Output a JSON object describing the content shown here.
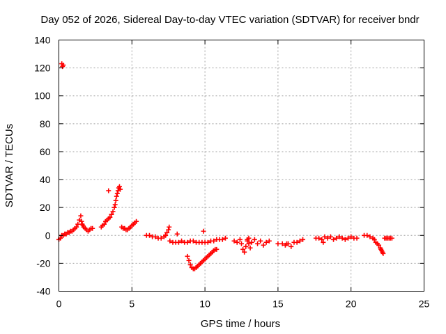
{
  "chart_data": {
    "type": "scatter",
    "title": "Day 052 of 2026, Sidereal Day-to-day VTEC variation (SDTVAR) for receiver bndr",
    "xlabel": "GPS time / hours",
    "ylabel": "SDTVAR / TECUs",
    "xlim": [
      0,
      25
    ],
    "ylim": [
      -40,
      140
    ],
    "xticks": [
      0,
      5,
      10,
      15,
      20,
      25
    ],
    "yticks": [
      -40,
      -20,
      0,
      20,
      40,
      60,
      80,
      100,
      120,
      140
    ],
    "grid": true,
    "marker": "+",
    "color": "#ff0000",
    "series": [
      {
        "x": [
          0.0,
          0.1,
          0.2,
          0.3,
          0.4,
          0.5,
          0.6,
          0.7,
          0.8,
          0.9,
          1.0,
          1.1,
          1.2,
          1.3,
          1.4,
          1.5,
          1.55,
          1.6,
          1.65,
          1.7,
          1.8,
          1.9,
          2.0,
          2.1,
          2.2,
          2.3,
          0.2,
          0.25,
          0.3,
          2.9,
          3.0,
          3.1,
          3.2,
          3.3,
          3.4,
          3.5,
          3.6,
          3.7,
          3.8,
          3.85,
          3.9,
          3.95,
          4.0,
          4.05,
          4.1,
          4.15,
          4.2,
          3.4,
          4.3,
          4.4,
          4.5,
          4.6,
          4.7,
          4.8,
          4.9,
          5.0,
          5.1,
          5.2,
          5.3,
          6.0,
          6.2,
          6.4,
          6.6,
          6.8,
          7.0,
          7.2,
          7.3,
          7.4,
          7.5,
          7.55,
          7.6,
          7.8,
          8.0,
          8.2,
          8.4,
          8.6,
          8.8,
          9.0,
          9.2,
          9.4,
          9.6,
          9.8,
          10.0,
          10.2,
          10.4,
          10.6,
          10.8,
          11.0,
          11.2,
          11.4,
          8.1,
          9.9,
          8.8,
          8.9,
          9.0,
          9.1,
          9.2,
          9.3,
          9.4,
          9.5,
          9.6,
          9.7,
          9.8,
          9.9,
          10.0,
          10.1,
          10.2,
          10.3,
          10.4,
          10.5,
          10.6,
          10.7,
          10.8,
          12.0,
          12.2,
          12.4,
          12.5,
          12.6,
          12.7,
          12.8,
          12.9,
          13.0,
          13.1,
          13.2,
          13.4,
          13.6,
          13.8,
          14.0,
          14.2,
          14.4,
          12.9,
          13.0,
          15.0,
          15.3,
          15.5,
          15.7,
          15.9,
          16.1,
          16.3,
          16.5,
          16.7,
          15.6,
          17.6,
          17.8,
          18.0,
          18.2,
          18.4,
          18.6,
          18.8,
          19.0,
          19.2,
          19.4,
          19.6,
          19.8,
          20.0,
          20.2,
          20.4,
          18.1,
          20.9,
          21.1,
          21.3,
          21.5,
          21.6,
          21.7,
          21.8,
          21.9,
          22.0,
          22.05,
          22.1,
          22.15,
          22.2,
          22.3,
          22.4,
          22.5,
          22.6,
          22.7,
          22.8
        ],
        "y": [
          -3,
          -2,
          0,
          0,
          1,
          1,
          2,
          2,
          3,
          3,
          4,
          5,
          6,
          8,
          11,
          14,
          10,
          8,
          7,
          6,
          5,
          4,
          3,
          4,
          5,
          5,
          123,
          121,
          122,
          6,
          7,
          8,
          10,
          11,
          12,
          13,
          15,
          17,
          20,
          22,
          25,
          28,
          30,
          32,
          34,
          35,
          33,
          32,
          6,
          5,
          5,
          4,
          4,
          5,
          6,
          7,
          8,
          9,
          10,
          0,
          0,
          -1,
          -1,
          -2,
          -2,
          -1,
          0,
          2,
          4,
          6,
          -4,
          -5,
          -5,
          -5,
          -4,
          -5,
          -5,
          -4,
          -4,
          -5,
          -5,
          -5,
          -5,
          -5,
          -4,
          -4,
          -3,
          -3,
          -3,
          -2,
          1,
          3,
          -15,
          -18,
          -21,
          -23,
          -24,
          -24,
          -23,
          -22,
          -21,
          -20,
          -19,
          -18,
          -17,
          -16,
          -15,
          -14,
          -13,
          -12,
          -11,
          -10,
          -10,
          -4,
          -5,
          -3,
          -6,
          -10,
          -12,
          -8,
          -4,
          -6,
          -9,
          -5,
          -3,
          -6,
          -4,
          -7,
          -5,
          -4,
          -3,
          -2,
          -6,
          -6,
          -7,
          -6,
          -8,
          -5,
          -5,
          -4,
          -3,
          -6,
          -2,
          -2,
          -3,
          -1,
          -2,
          -1,
          -3,
          -2,
          -1,
          -2,
          -3,
          -2,
          -1,
          -2,
          -2,
          -5,
          0,
          0,
          -1,
          -2,
          -3,
          -5,
          -6,
          -7,
          -9,
          -10,
          -11,
          -12,
          -13,
          -2,
          -2,
          -2,
          -2,
          -2,
          -2
        ]
      }
    ]
  }
}
